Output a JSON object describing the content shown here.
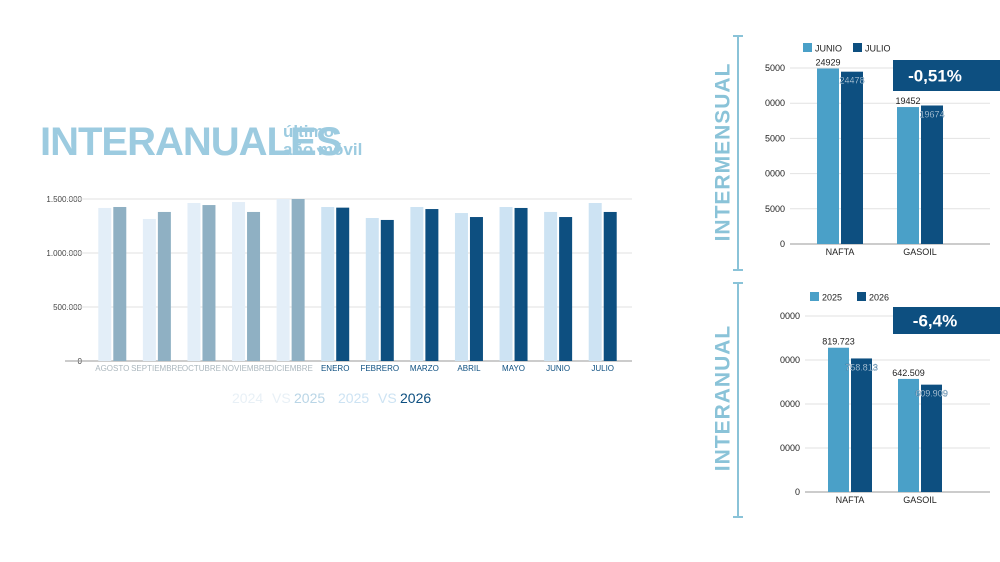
{
  "header": {
    "title": "INTERANUALES",
    "subtitle_1": "último",
    "subtitle_2": "año móvil"
  },
  "chart_data": [
    {
      "type": "bar",
      "categories": [
        "AGOSTO",
        "SEPTIEMBRE",
        "OCTUBRE",
        "NOVIEMBRE",
        "DICIEMBRE",
        "ENERO",
        "FEBRERO",
        "MARZO",
        "ABRIL",
        "MAYO",
        "JUNIO",
        "JULIO"
      ],
      "series": [
        {
          "colors": [
            "#e3eef8",
            "#e3eef8",
            "#e3eef8",
            "#e3eef8",
            "#e3eef8",
            "#cde3f3",
            "#cde3f3",
            "#cde3f3",
            "#cde3f3",
            "#cde3f3",
            "#cde3f3",
            "#cde3f3"
          ],
          "values": [
            1417000,
            1315000,
            1463000,
            1472000,
            1500000,
            1426000,
            1324000,
            1426000,
            1370000,
            1426000,
            1380000,
            1463000
          ]
        },
        {
          "colors": [
            "#8fb0c3",
            "#8fb0c3",
            "#8fb0c3",
            "#8fb0c3",
            "#8fb0c3",
            "#0d4f80",
            "#0d4f80",
            "#0d4f80",
            "#0d4f80",
            "#0d4f80",
            "#0d4f80",
            "#0d4f80"
          ],
          "values": [
            1426000,
            1380000,
            1444000,
            1380000,
            1500000,
            1420000,
            1306000,
            1407000,
            1333000,
            1417000,
            1333000,
            1380000
          ]
        }
      ],
      "legend": [
        [
          "2024",
          "VS",
          "2025"
        ],
        [
          "2025",
          "VS",
          "2026"
        ]
      ],
      "ylim": [
        0,
        1500000
      ],
      "yticks": [
        0,
        {
          "value": 500000,
          "label": "500.000"
        },
        {
          "value": 1000000,
          "label": "1.000.000"
        },
        {
          "value": 1500000,
          "label": "1.500.000"
        }
      ],
      "grid": true
    },
    {
      "type": "bar",
      "title": "INTERMENSUAL",
      "badge": "-0,51%",
      "categories": [
        "NAFTA",
        "GASOIL"
      ],
      "series": [
        {
          "name": "JUNIO",
          "color": "#4aa0c8",
          "values": [
            24929,
            19452
          ]
        },
        {
          "name": "JULIO",
          "color": "#0d4f80",
          "values": [
            24478,
            19674
          ]
        }
      ],
      "ylim": [
        0,
        25000
      ],
      "yticks": [
        0,
        {
          "value": 5000,
          "label": "5000"
        },
        {
          "value": 10000,
          "label": "0000"
        },
        {
          "value": 15000,
          "label": "5000"
        },
        {
          "value": 20000,
          "label": "0000"
        },
        {
          "value": 25000,
          "label": "5000"
        }
      ],
      "grid": true
    },
    {
      "type": "bar",
      "title": "INTERANUAL",
      "badge": "-6,4%",
      "categories": [
        "NAFTA",
        "GASOIL"
      ],
      "series": [
        {
          "name": "2025",
          "color": "#4aa0c8",
          "values": [
            819723,
            642509
          ],
          "value_labels": [
            "819.723",
            "642.509"
          ]
        },
        {
          "name": "2026",
          "color": "#0d4f80",
          "values": [
            758813,
            609909
          ],
          "value_labels": [
            "758.813",
            "609.909"
          ]
        }
      ],
      "ylim": [
        0,
        1000000
      ],
      "yticks": [
        0,
        {
          "value": 250000,
          "label": "0000"
        },
        {
          "value": 500000,
          "label": "0000"
        },
        {
          "value": 750000,
          "label": "0000"
        },
        {
          "value": 1000000,
          "label": "0000"
        }
      ],
      "grid": true
    }
  ]
}
